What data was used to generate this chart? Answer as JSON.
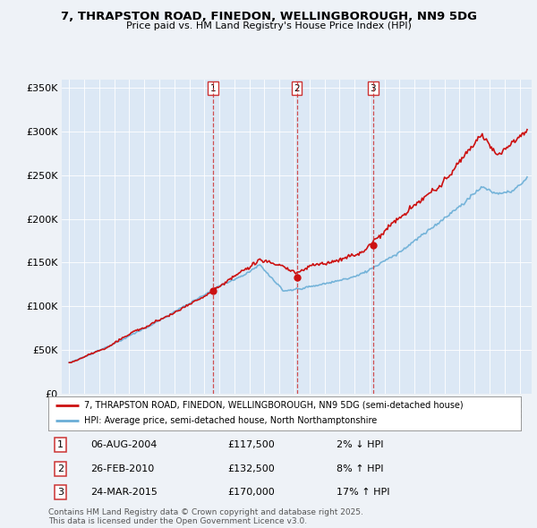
{
  "title": "7, THRAPSTON ROAD, FINEDON, WELLINGBOROUGH, NN9 5DG",
  "subtitle": "Price paid vs. HM Land Registry's House Price Index (HPI)",
  "background_color": "#eef2f7",
  "plot_bg_color": "#dce8f5",
  "legend_line1": "7, THRAPSTON ROAD, FINEDON, WELLINGBOROUGH, NN9 5DG (semi-detached house)",
  "legend_line2": "HPI: Average price, semi-detached house, North Northamptonshire",
  "transactions": [
    {
      "num": 1,
      "date": "06-AUG-2004",
      "price": 117500,
      "pct": "2%",
      "dir": "↓",
      "x": 2004.6
    },
    {
      "num": 2,
      "date": "26-FEB-2010",
      "price": 132500,
      "pct": "8%",
      "dir": "↑",
      "x": 2010.15
    },
    {
      "num": 3,
      "date": "24-MAR-2015",
      "price": 170000,
      "pct": "17%",
      "dir": "↑",
      "x": 2015.23
    }
  ],
  "transaction_prices": [
    117500,
    132500,
    170000
  ],
  "footer": "Contains HM Land Registry data © Crown copyright and database right 2025.\nThis data is licensed under the Open Government Licence v3.0.",
  "hpi_color": "#6aaed6",
  "price_color": "#cc1111",
  "transaction_line_color": "#cc3333",
  "ylim": [
    0,
    360000
  ],
  "yticks": [
    0,
    50000,
    100000,
    150000,
    200000,
    250000,
    300000,
    350000
  ],
  "xmin": 1994.5,
  "xmax": 2025.8,
  "xtick_start": 1995,
  "xtick_end": 2025
}
